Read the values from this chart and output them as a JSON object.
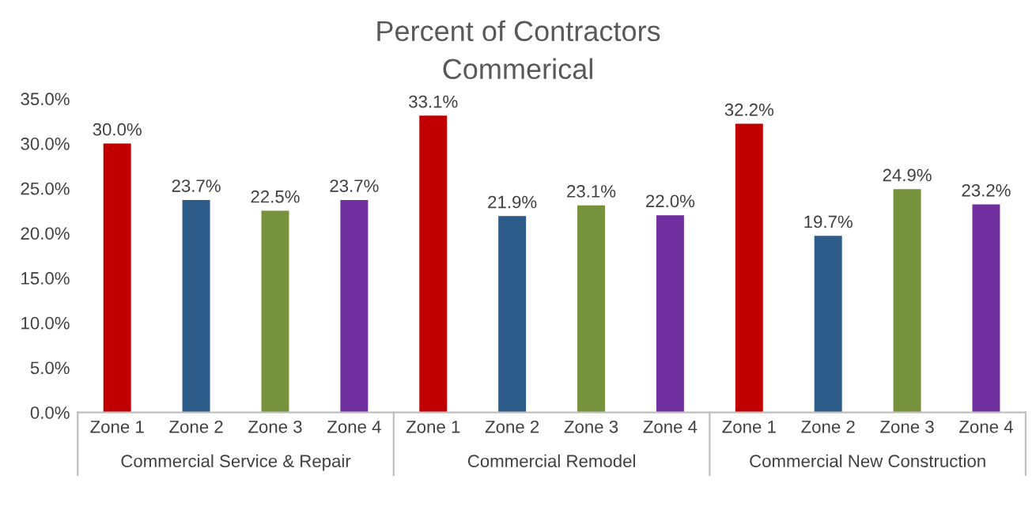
{
  "chart_data": {
    "type": "bar",
    "title": "Percent of Contractors",
    "subtitle": "Commerical",
    "categories": [
      "Zone 1",
      "Zone 2",
      "Zone 3",
      "Zone 4",
      "Zone 1",
      "Zone 2",
      "Zone 3",
      "Zone 4",
      "Zone 1",
      "Zone 2",
      "Zone 3",
      "Zone 4"
    ],
    "values": [
      30.0,
      23.7,
      22.5,
      23.7,
      33.1,
      21.9,
      23.1,
      22.0,
      32.2,
      19.7,
      24.9,
      23.2
    ],
    "value_labels": [
      "30.0%",
      "23.7%",
      "22.5%",
      "23.7%",
      "33.1%",
      "21.9%",
      "23.1%",
      "22.0%",
      "32.2%",
      "19.7%",
      "24.9%",
      "23.2%"
    ],
    "colors": [
      "#c00000",
      "#2e5c8a",
      "#76923c",
      "#7030a0",
      "#c00000",
      "#2e5c8a",
      "#76923c",
      "#7030a0",
      "#c00000",
      "#2e5c8a",
      "#76923c",
      "#7030a0"
    ],
    "annotations": [
      "Commercial Service & Repair",
      "Commercial Remodel",
      "Commercial New Construction"
    ],
    "ylim": [
      0,
      35
    ],
    "yticks": [
      {
        "value": 0,
        "label": "0.0%"
      },
      {
        "value": 5,
        "label": "5.0%"
      },
      {
        "value": 10,
        "label": "10.0%"
      },
      {
        "value": 15,
        "label": "15.0%"
      },
      {
        "value": 20,
        "label": "20.0%"
      },
      {
        "value": 25,
        "label": "25.0%"
      },
      {
        "value": 30,
        "label": "30.0%"
      },
      {
        "value": 35,
        "label": "35.0%"
      }
    ],
    "grid": false,
    "legend": false
  }
}
